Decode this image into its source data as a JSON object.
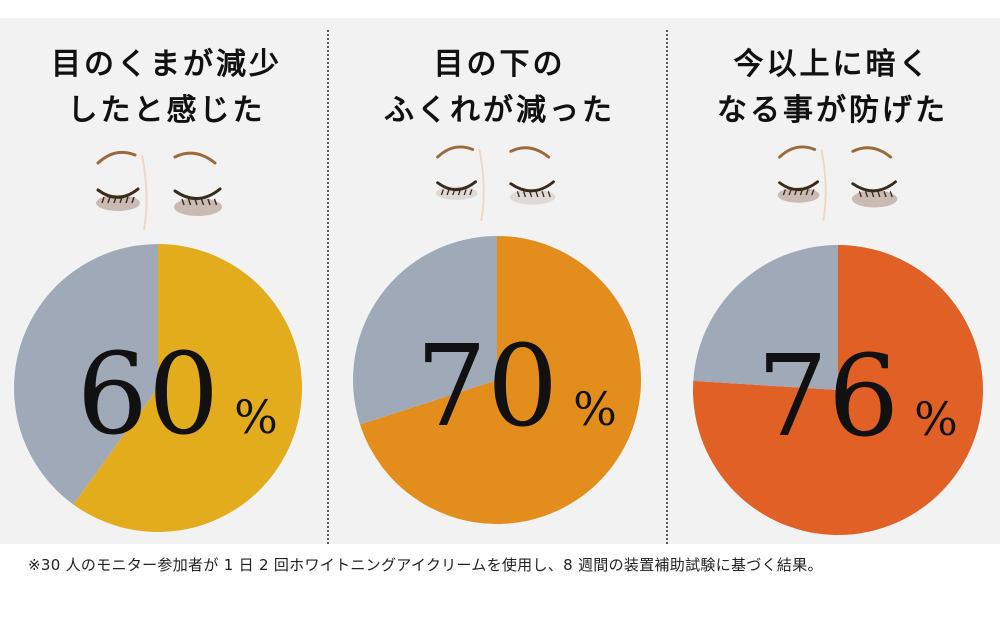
{
  "chart_data": [
    {
      "type": "pie",
      "title": [
        "目のくまが減少",
        "したと感じた"
      ],
      "values": [
        60,
        40
      ],
      "label": "60",
      "unit": "%",
      "colors": [
        "#e3ac1c",
        "#a0a9b8"
      ]
    },
    {
      "type": "pie",
      "title": [
        "目の下の",
        "ふくれが減った"
      ],
      "values": [
        70,
        30
      ],
      "label": "70",
      "unit": "%",
      "colors": [
        "#e38d1c",
        "#a0a9b8"
      ]
    },
    {
      "type": "pie",
      "title": [
        "今以上に暗く",
        "なる事が防げた"
      ],
      "values": [
        76,
        24
      ],
      "label": "76",
      "unit": "%",
      "colors": [
        "#e06025",
        "#a0a9b8"
      ]
    }
  ],
  "footnote": "※30 人のモニター参加者が 1 日 2 回ホワイトニングアイクリームを使用し、8 週間の装置補助試験に基づく結果。",
  "icons": [
    "closed-eyes-icon"
  ]
}
